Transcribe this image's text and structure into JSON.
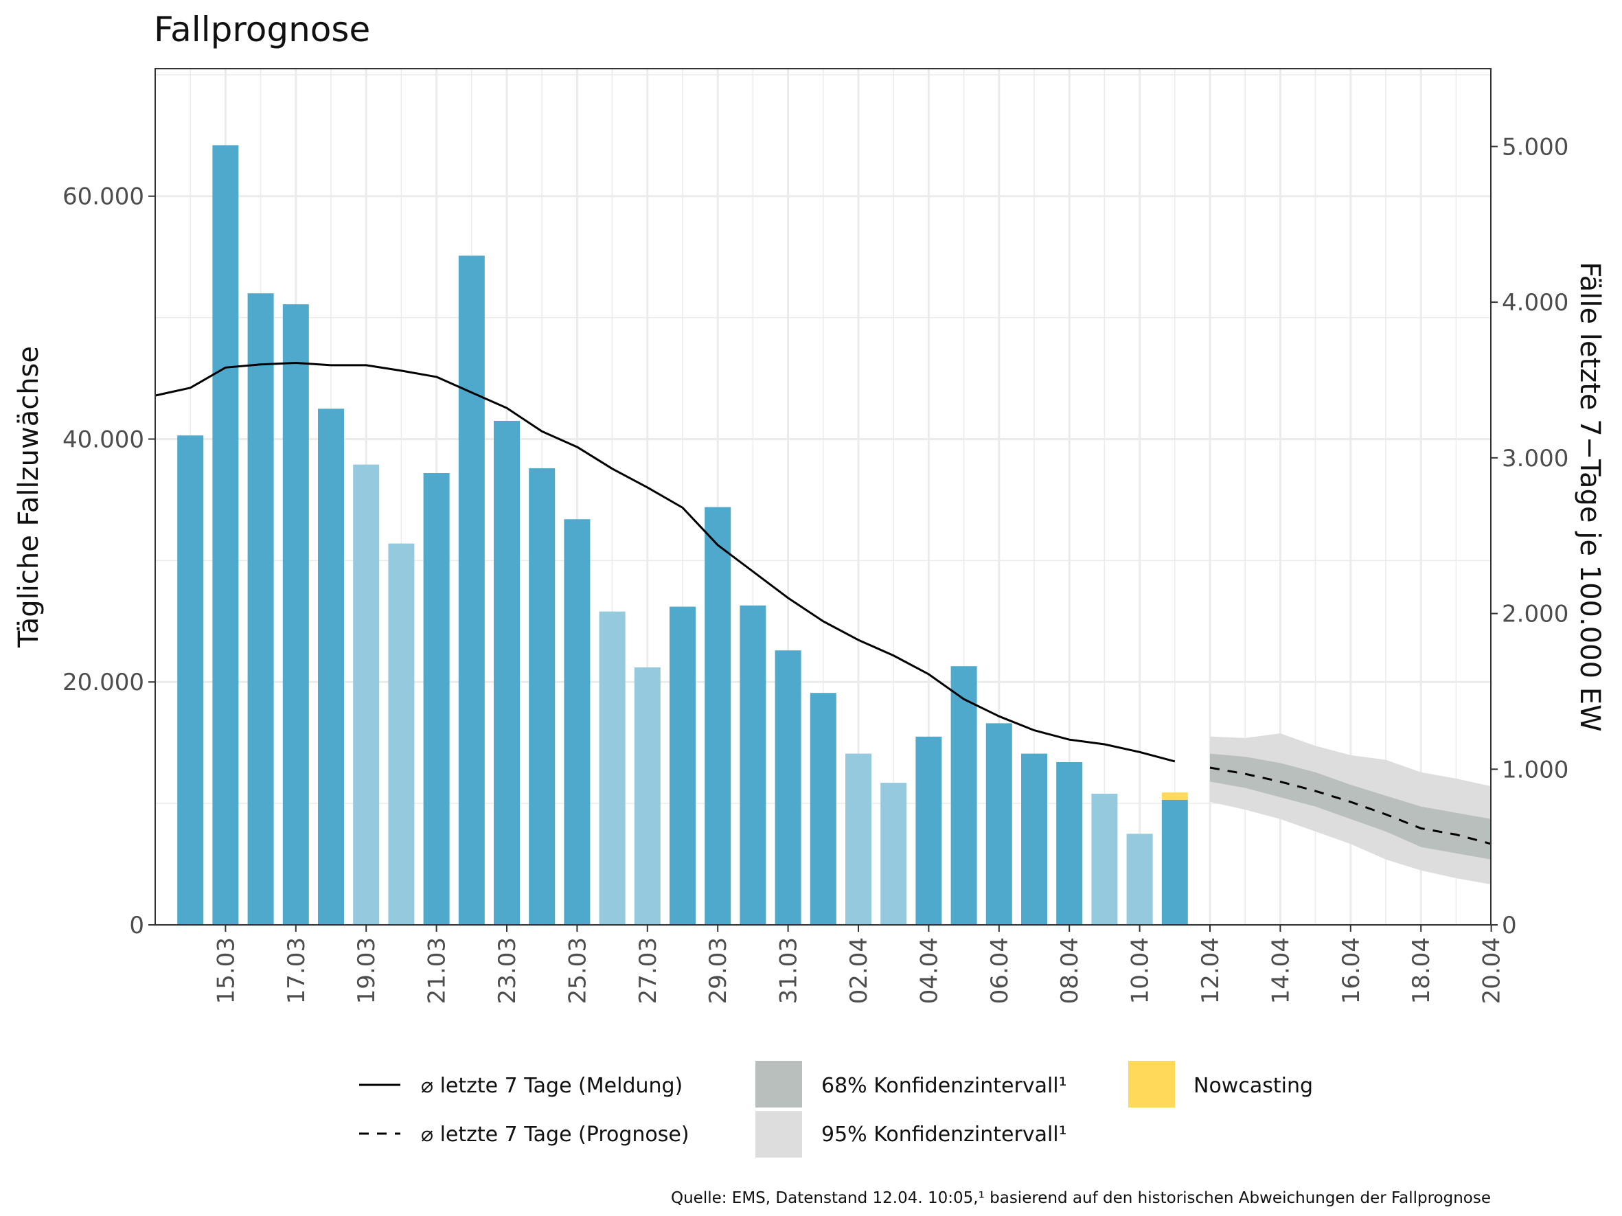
{
  "chart_data": {
    "type": "bar",
    "title": "Fallprognose",
    "ylabel": "Tägliche Fallzuwächse",
    "y2label": "Fälle letzte 7−Tage je 100.000 EW",
    "ylim": [
      0,
      70500
    ],
    "y2lim": [
      0,
      5500
    ],
    "yticks": [
      {
        "value": 0,
        "label": "0"
      },
      {
        "value": 20000,
        "label": "20.000"
      },
      {
        "value": 40000,
        "label": "40.000"
      },
      {
        "value": 60000,
        "label": "60.000"
      }
    ],
    "y2ticks": [
      {
        "value": 0,
        "label": "0"
      },
      {
        "value": 1000,
        "label": "1.000"
      },
      {
        "value": 2000,
        "label": "2.000"
      },
      {
        "value": 3000,
        "label": "3.000"
      },
      {
        "value": 4000,
        "label": "4.000"
      },
      {
        "value": 5000,
        "label": "5.000"
      }
    ],
    "xticks": [
      "15.03",
      "17.03",
      "19.03",
      "21.03",
      "23.03",
      "25.03",
      "27.03",
      "29.03",
      "31.03",
      "02.04",
      "04.04",
      "06.04",
      "08.04",
      "10.04",
      "12.04",
      "14.04",
      "16.04",
      "18.04",
      "20.04"
    ],
    "grid": true,
    "colors": {
      "bar_weekday": "#4fa9cc",
      "bar_weekend": "#95c9de",
      "nowcasting": "#ffd95a",
      "ci68": "#b9bfbc",
      "ci95": "#dcdddc",
      "line": "#000000",
      "grid": "#ebebeb"
    },
    "bars": [
      {
        "date": "14.03",
        "value": 40300,
        "kind": "weekday"
      },
      {
        "date": "15.03",
        "value": 64200,
        "kind": "weekday"
      },
      {
        "date": "16.03",
        "value": 52000,
        "kind": "weekday"
      },
      {
        "date": "17.03",
        "value": 51100,
        "kind": "weekday"
      },
      {
        "date": "18.03",
        "value": 42500,
        "kind": "weekday"
      },
      {
        "date": "19.03",
        "value": 37900,
        "kind": "weekend"
      },
      {
        "date": "20.03",
        "value": 31400,
        "kind": "weekend"
      },
      {
        "date": "21.03",
        "value": 37200,
        "kind": "weekday"
      },
      {
        "date": "22.03",
        "value": 55100,
        "kind": "weekday"
      },
      {
        "date": "23.03",
        "value": 41500,
        "kind": "weekday"
      },
      {
        "date": "24.03",
        "value": 37600,
        "kind": "weekday"
      },
      {
        "date": "25.03",
        "value": 33400,
        "kind": "weekday"
      },
      {
        "date": "26.03",
        "value": 25800,
        "kind": "weekend"
      },
      {
        "date": "27.03",
        "value": 21200,
        "kind": "weekend"
      },
      {
        "date": "28.03",
        "value": 26200,
        "kind": "weekday"
      },
      {
        "date": "29.03",
        "value": 34400,
        "kind": "weekday"
      },
      {
        "date": "30.03",
        "value": 26300,
        "kind": "weekday"
      },
      {
        "date": "31.03",
        "value": 22600,
        "kind": "weekday"
      },
      {
        "date": "01.04",
        "value": 19100,
        "kind": "weekday"
      },
      {
        "date": "02.04",
        "value": 14100,
        "kind": "weekend"
      },
      {
        "date": "03.04",
        "value": 11700,
        "kind": "weekend"
      },
      {
        "date": "04.04",
        "value": 15500,
        "kind": "weekday"
      },
      {
        "date": "05.04",
        "value": 21300,
        "kind": "weekday"
      },
      {
        "date": "06.04",
        "value": 16600,
        "kind": "weekday"
      },
      {
        "date": "07.04",
        "value": 14100,
        "kind": "weekday"
      },
      {
        "date": "08.04",
        "value": 13400,
        "kind": "weekday"
      },
      {
        "date": "09.04",
        "value": 10800,
        "kind": "weekend"
      },
      {
        "date": "10.04",
        "value": 7500,
        "kind": "weekend"
      },
      {
        "date": "11.04",
        "value": 10300,
        "kind": "weekday",
        "nowcasting": 600
      }
    ],
    "series": [
      {
        "name": "⌀ letzte 7 Tage (Meldung)",
        "axis": "right",
        "style": "solid",
        "points": [
          [
            "13.03",
            3400
          ],
          [
            "14.03",
            3450
          ],
          [
            "15.03",
            3580
          ],
          [
            "16.03",
            3600
          ],
          [
            "17.03",
            3610
          ],
          [
            "18.03",
            3595
          ],
          [
            "19.03",
            3595
          ],
          [
            "20.03",
            3560
          ],
          [
            "21.03",
            3520
          ],
          [
            "22.03",
            3420
          ],
          [
            "23.03",
            3320
          ],
          [
            "24.03",
            3170
          ],
          [
            "25.03",
            3070
          ],
          [
            "26.03",
            2930
          ],
          [
            "27.03",
            2810
          ],
          [
            "28.03",
            2680
          ],
          [
            "29.03",
            2440
          ],
          [
            "30.03",
            2270
          ],
          [
            "31.03",
            2100
          ],
          [
            "01.04",
            1950
          ],
          [
            "02.04",
            1830
          ],
          [
            "03.04",
            1730
          ],
          [
            "04.04",
            1610
          ],
          [
            "05.04",
            1450
          ],
          [
            "06.04",
            1340
          ],
          [
            "07.04",
            1250
          ],
          [
            "08.04",
            1190
          ],
          [
            "09.04",
            1160
          ],
          [
            "10.04",
            1110
          ],
          [
            "11.04",
            1050
          ]
        ]
      },
      {
        "name": "⌀ letzte 7 Tage (Prognose)",
        "axis": "right",
        "style": "dashed",
        "points": [
          [
            "12.04",
            1010
          ],
          [
            "13.04",
            970
          ],
          [
            "14.04",
            920
          ],
          [
            "15.04",
            860
          ],
          [
            "16.04",
            790
          ],
          [
            "17.04",
            710
          ],
          [
            "18.04",
            620
          ],
          [
            "19.04",
            580
          ],
          [
            "20.04",
            520
          ]
        ]
      }
    ],
    "ci68": [
      [
        "12.04",
        1100,
        920
      ],
      [
        "13.04",
        1080,
        880
      ],
      [
        "14.04",
        1040,
        820
      ],
      [
        "15.04",
        980,
        760
      ],
      [
        "16.04",
        900,
        680
      ],
      [
        "17.04",
        830,
        600
      ],
      [
        "18.04",
        760,
        500
      ],
      [
        "19.04",
        720,
        460
      ],
      [
        "20.04",
        680,
        420
      ]
    ],
    "ci95": [
      [
        "12.04",
        1210,
        790
      ],
      [
        "13.04",
        1200,
        740
      ],
      [
        "14.04",
        1230,
        680
      ],
      [
        "15.04",
        1150,
        600
      ],
      [
        "16.04",
        1090,
        520
      ],
      [
        "17.04",
        1060,
        420
      ],
      [
        "18.04",
        980,
        350
      ],
      [
        "19.04",
        940,
        300
      ],
      [
        "20.04",
        890,
        260
      ]
    ],
    "legend": {
      "line_actual": "⌀ letzte 7 Tage (Meldung)",
      "line_forecast": "⌀ letzte 7 Tage (Prognose)",
      "ci68": "68% Konfidenzintervall¹",
      "ci95": "95% Konfidenzintervall¹",
      "nowcasting": "Nowcasting"
    },
    "source": "Quelle: EMS, Datenstand 12.04. 10:05,¹ basierend auf den historischen Abweichungen der Fallprognose"
  }
}
